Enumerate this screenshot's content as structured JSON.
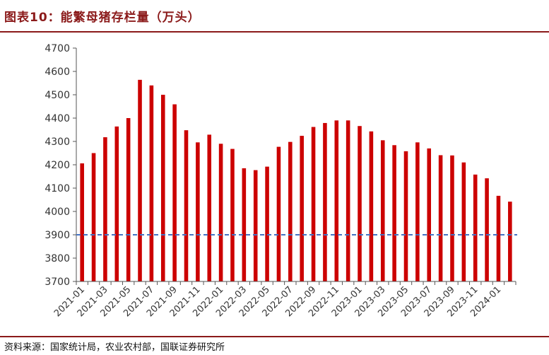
{
  "title": "图表10：能繁母猪存栏量（万头）",
  "source": "资料来源：国家统计局，农业农村部，国联证券研究所",
  "colors": {
    "bar": "#cc0000",
    "reference": "#4472c4",
    "accent": "#8b1a1a"
  },
  "chart_data": {
    "type": "bar",
    "title": "",
    "xlabel": "",
    "ylabel": "",
    "ylim": [
      3700,
      4700
    ],
    "yticks": [
      3700,
      3800,
      3900,
      4000,
      4100,
      4200,
      4300,
      4400,
      4500,
      4600,
      4700
    ],
    "grid": false,
    "legend": "none",
    "reference_line": {
      "value": 3900,
      "style": "dashed"
    },
    "x_tick_labels": [
      "2021-01",
      "2021-03",
      "2021-05",
      "2021-07",
      "2021-09",
      "2021-11",
      "2022-01",
      "2022-03",
      "2022-05",
      "2022-07",
      "2022-09",
      "2022-11",
      "2023-01",
      "2023-03",
      "2023-05",
      "2023-07",
      "2023-09",
      "2023-11",
      "2024-01"
    ],
    "categories": [
      "2021-01",
      "2021-02",
      "2021-03",
      "2021-04",
      "2021-05",
      "2021-06",
      "2021-07",
      "2021-08",
      "2021-09",
      "2021-10",
      "2021-11",
      "2021-12",
      "2022-01",
      "2022-02",
      "2022-03",
      "2022-04",
      "2022-05",
      "2022-06",
      "2022-07",
      "2022-08",
      "2022-09",
      "2022-10",
      "2022-11",
      "2022-12",
      "2023-01",
      "2023-02",
      "2023-03",
      "2023-04",
      "2023-05",
      "2023-06",
      "2023-07",
      "2023-08",
      "2023-09",
      "2023-10",
      "2023-11",
      "2023-12",
      "2024-01",
      "2024-02"
    ],
    "values": [
      4206,
      4250,
      4318,
      4364,
      4400,
      4564,
      4540,
      4500,
      4459,
      4348,
      4296,
      4329,
      4290,
      4268,
      4185,
      4177,
      4192,
      4277,
      4298,
      4324,
      4362,
      4379,
      4390,
      4390,
      4366,
      4343,
      4305,
      4284,
      4258,
      4296,
      4270,
      4241,
      4240,
      4210,
      4158,
      4142,
      4067,
      4042
    ]
  }
}
